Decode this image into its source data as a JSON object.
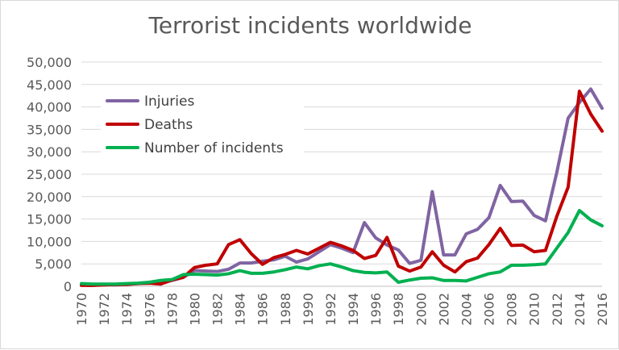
{
  "chart_data": {
    "type": "line",
    "title": "Terrorist incidents worldwide",
    "xlabel": "",
    "ylabel": "",
    "x": [
      1970,
      1971,
      1972,
      1973,
      1974,
      1975,
      1976,
      1977,
      1978,
      1979,
      1980,
      1981,
      1982,
      1983,
      1984,
      1985,
      1986,
      1987,
      1988,
      1989,
      1990,
      1991,
      1992,
      1993,
      1994,
      1995,
      1996,
      1997,
      1998,
      1999,
      2000,
      2001,
      2002,
      2003,
      2004,
      2005,
      2006,
      2007,
      2008,
      2009,
      2010,
      2011,
      2012,
      2013,
      2014,
      2015,
      2016
    ],
    "xlim": [
      1970,
      2016
    ],
    "ylim": [
      0,
      50000
    ],
    "x_tick_labels": [
      "1970",
      "1972",
      "1974",
      "1976",
      "1978",
      "1980",
      "1982",
      "1984",
      "1986",
      "1988",
      "1990",
      "1992",
      "1994",
      "1996",
      "1998",
      "2000",
      "2002",
      "2004",
      "2006",
      "2008",
      "2010",
      "2012",
      "2014",
      "2016"
    ],
    "y_tick_labels": [
      "0",
      "5,000",
      "10,000",
      "15,000",
      "20,000",
      "25,000",
      "30,000",
      "35,000",
      "40,000",
      "45,000",
      "50,000"
    ],
    "y_ticks": [
      0,
      5000,
      10000,
      15000,
      20000,
      25000,
      30000,
      35000,
      40000,
      45000,
      50000
    ],
    "grid": "horizontal",
    "legend_position": "top-left",
    "series": [
      {
        "name": "Injuries",
        "color": "#8064a2",
        "values": [
          300,
          200,
          400,
          300,
          500,
          600,
          700,
          900,
          1300,
          2000,
          3500,
          3400,
          3300,
          3800,
          5200,
          5200,
          5600,
          5900,
          6700,
          5400,
          6100,
          7700,
          9300,
          8500,
          7500,
          14200,
          10800,
          9200,
          8100,
          5100,
          5800,
          21100,
          7000,
          7000,
          11700,
          12700,
          15300,
          22500,
          18900,
          19000,
          15800,
          14600,
          25400,
          37500,
          41000,
          44000,
          39700
        ]
      },
      {
        "name": "Deaths",
        "color": "#c00000",
        "values": [
          200,
          200,
          300,
          400,
          400,
          600,
          700,
          500,
          1400,
          2000,
          4200,
          4700,
          5000,
          9300,
          10400,
          7300,
          4900,
          6400,
          7100,
          8000,
          7200,
          8500,
          9800,
          9000,
          8000,
          6200,
          6900,
          10900,
          4500,
          3400,
          4300,
          7700,
          4700,
          3200,
          5500,
          6300,
          9300,
          12900,
          9100,
          9200,
          7700,
          8000,
          15600,
          22100,
          43500,
          38400,
          34600
        ]
      },
      {
        "name": "Number of incidents",
        "color": "#00b050",
        "values": [
          600,
          500,
          500,
          500,
          600,
          700,
          900,
          1300,
          1500,
          2600,
          2700,
          2600,
          2500,
          2800,
          3500,
          2900,
          2900,
          3200,
          3700,
          4300,
          3900,
          4600,
          5000,
          4300,
          3500,
          3100,
          3000,
          3200,
          900,
          1400,
          1800,
          1900,
          1300,
          1300,
          1200,
          2000,
          2800,
          3200,
          4700,
          4700,
          4800,
          5000,
          8500,
          12000,
          16900,
          14800,
          13500
        ]
      }
    ]
  }
}
